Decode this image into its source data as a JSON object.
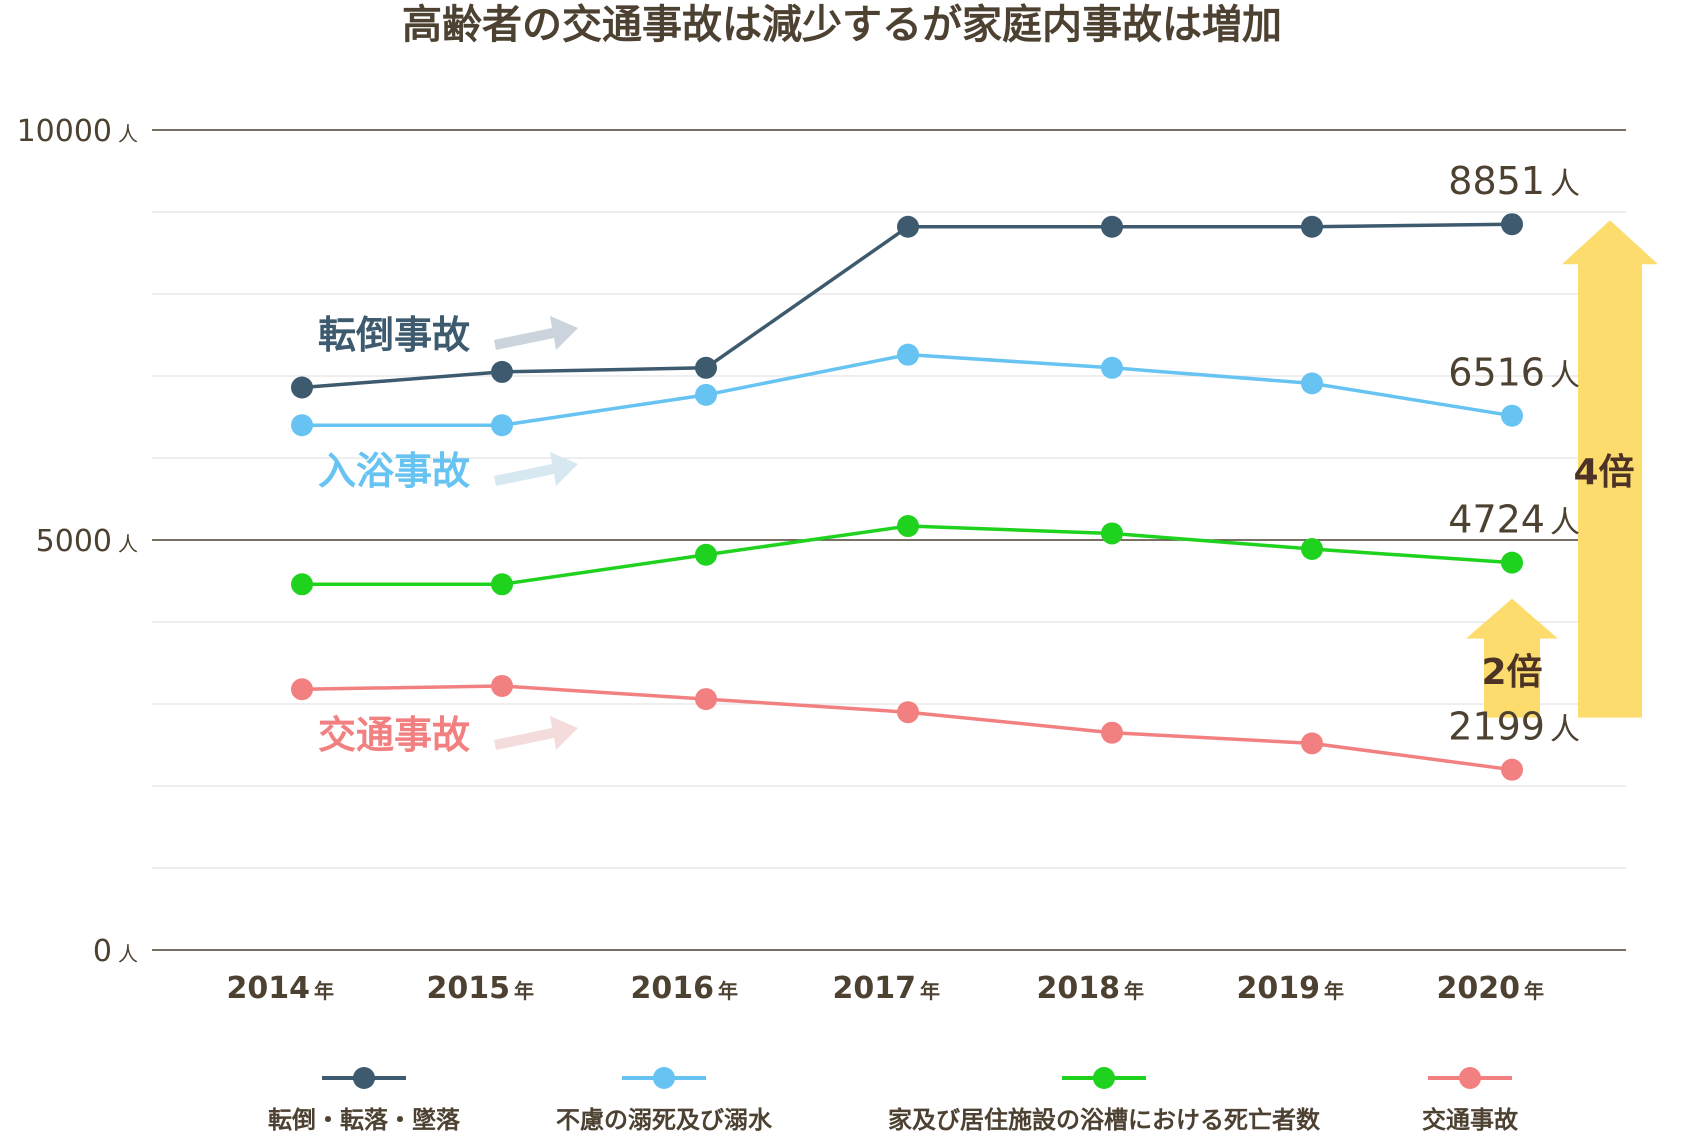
{
  "chart_data": {
    "type": "line",
    "title": "高齢者の交通事故は減少するが家庭内事故は増加",
    "categories": [
      "2014",
      "2015",
      "2016",
      "2017",
      "2018",
      "2019",
      "2020"
    ],
    "x_unit": "年",
    "y_unit": "人",
    "ylim": [
      0,
      10000
    ],
    "yticks": [
      "0",
      "5000",
      "10000"
    ],
    "grid": true,
    "legend_position": "bottom",
    "series": [
      {
        "name": "転倒・転落・墜落",
        "color": "#3d5a6e",
        "values": [
          6860,
          7050,
          7100,
          8820,
          8820,
          8820,
          8851
        ],
        "end_label": "8851",
        "annotation": "転倒事故",
        "annotation_color": "#3d5a6e",
        "arrow_color": "#cbd3dc"
      },
      {
        "name": "不慮の溺死及び溺水",
        "color": "#66c3f2",
        "values": [
          6400,
          6400,
          6770,
          7260,
          7100,
          6910,
          6516
        ],
        "end_label": "6516",
        "annotation": "入浴事故",
        "annotation_color": "#66c3f2",
        "arrow_color": "#d7e8f1"
      },
      {
        "name": "家及び居住施設の浴槽における死亡者数",
        "color": "#1ed21e",
        "values": [
          4460,
          4460,
          4820,
          5170,
          5080,
          4890,
          4724
        ],
        "end_label": "4724",
        "annotation": "",
        "annotation_color": "#1ed21e",
        "arrow_color": ""
      },
      {
        "name": "交通事故",
        "color": "#f28080",
        "values": [
          3180,
          3220,
          3060,
          2900,
          2650,
          2520,
          2199
        ],
        "end_label": "2199",
        "annotation": "交通事故",
        "annotation_color": "#f28080",
        "arrow_color": "#f4dcdc"
      }
    ],
    "ratio_annotations": [
      {
        "label": "4倍",
        "from": 2199,
        "to": 8851,
        "color": "#fbdc6d"
      },
      {
        "label": "2倍",
        "from": 2199,
        "to": 4724,
        "color": "#fbdc6d"
      }
    ]
  }
}
